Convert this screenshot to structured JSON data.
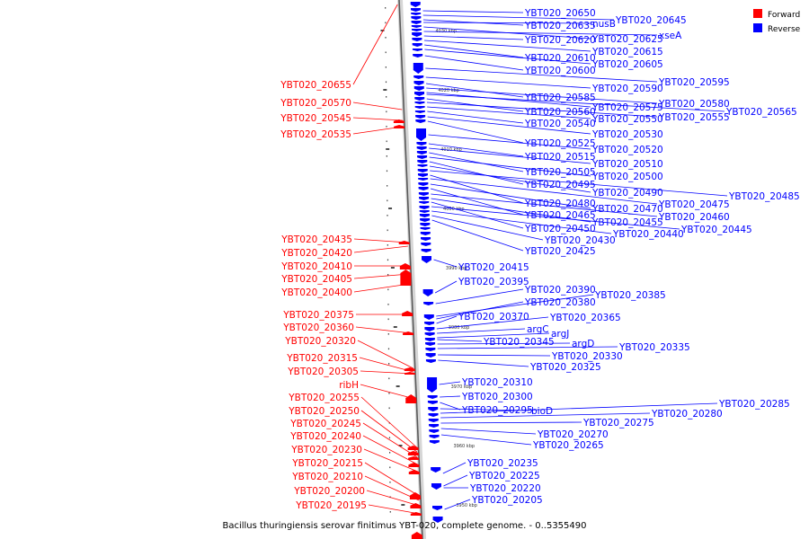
{
  "legend": [
    {
      "label": "Forward",
      "color": "#ff0000"
    },
    {
      "label": "Reverse",
      "color": "#0000ff"
    }
  ],
  "caption": "Bacillus thuringiensis serovar finitimus YBT-020, complete genome. - 0..5355490",
  "scale_ticks": [
    "4030 kbp",
    "4020 kbp",
    "4010 kbp",
    "4000 kbp",
    "3990 kbp",
    "3980 kbp",
    "3970 kbp",
    "3960 kbp",
    "3950 kbp"
  ],
  "forward_genes": [
    "YBT020_20655",
    "YBT020_20570",
    "YBT020_20545",
    "YBT020_20535",
    "YBT020_20435",
    "YBT020_20420",
    "YBT020_20410",
    "YBT020_20405",
    "YBT020_20400",
    "YBT020_20375",
    "YBT020_20360",
    "YBT020_20320",
    "YBT020_20315",
    "YBT020_20305",
    "ribH",
    "YBT020_20255",
    "YBT020_20250",
    "YBT020_20245",
    "YBT020_20240",
    "YBT020_20230",
    "YBT020_20215",
    "YBT020_20210",
    "YBT020_20200",
    "YBT020_20195"
  ],
  "reverse_genes": [
    "YBT020_20650",
    "YBT020_20645",
    "YBT020_20635",
    "nusB",
    "YBT020_20625",
    "xseA",
    "YBT020_20620",
    "YBT020_20615",
    "YBT020_20610",
    "YBT020_20605",
    "YBT020_20600",
    "YBT020_20595",
    "YBT020_20590",
    "YBT020_20585",
    "YBT020_20580",
    "YBT020_20575",
    "YBT020_20565",
    "YBT020_20560",
    "YBT020_20555",
    "YBT020_20550",
    "YBT020_20540",
    "YBT020_20530",
    "YBT020_20525",
    "YBT020_20520",
    "YBT020_20515",
    "YBT020_20510",
    "YBT020_20505",
    "YBT020_20500",
    "YBT020_20495",
    "YBT020_20490",
    "YBT020_20485",
    "YBT020_20480",
    "YBT020_20475",
    "YBT020_20470",
    "YBT020_20465",
    "YBT020_20460",
    "YBT020_20455",
    "YBT020_20450",
    "YBT020_20445",
    "YBT020_20440",
    "YBT020_20430",
    "YBT020_20425",
    "YBT020_20415",
    "YBT020_20395",
    "YBT020_20390",
    "YBT020_20385",
    "YBT020_20380",
    "YBT020_20370",
    "YBT020_20365",
    "argC",
    "argJ",
    "YBT020_20345",
    "argD",
    "YBT020_20335",
    "YBT020_20330",
    "YBT020_20325",
    "YBT020_20310",
    "YBT020_20300",
    "YBT020_20295",
    "bioD",
    "YBT020_20285",
    "YBT020_20280",
    "YBT020_20275",
    "YBT020_20270",
    "YBT020_20265",
    "YBT020_20235",
    "YBT020_20225",
    "YBT020_20220",
    "YBT020_20205"
  ]
}
